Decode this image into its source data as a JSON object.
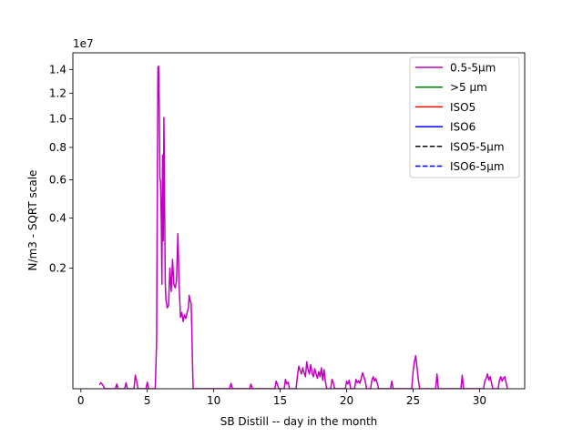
{
  "chart_data": {
    "type": "line",
    "xlabel": "SB Distill -- day in the month",
    "ylabel": "N/m3 - SQRT scale",
    "y_scale": "sqrt",
    "y_offset_label": "1e7",
    "xlim": [
      -0.6,
      33.4
    ],
    "ylim": [
      0,
      15500000
    ],
    "x_ticks": [
      0,
      5,
      10,
      15,
      20,
      25,
      30
    ],
    "x_tick_labels": [
      "0",
      "5",
      "10",
      "15",
      "20",
      "25",
      "30"
    ],
    "y_ticks": [
      2000000,
      4000000,
      6000000,
      8000000,
      10000000,
      12000000,
      14000000
    ],
    "y_tick_labels": [
      "0.2",
      "0.4",
      "0.6",
      "0.8",
      "1.0",
      "1.2",
      "1.4"
    ],
    "legend": {
      "location": "top-right",
      "entries": [
        {
          "label": "0.5-5µm",
          "color": "#bf00bf",
          "dash": "solid"
        },
        {
          "label": ">5 µm",
          "color": "#008000",
          "dash": "solid"
        },
        {
          "label": "ISO5",
          "color": "#ff0000",
          "dash": "solid"
        },
        {
          "label": "ISO6",
          "color": "#0000ff",
          "dash": "solid"
        },
        {
          "label": "ISO5-5µm",
          "color": "#000000",
          "dash": "dashed"
        },
        {
          "label": "ISO6-5µm",
          "color": "#0000ff",
          "dash": "dashed"
        }
      ]
    },
    "series": [
      {
        "name": "0.5-5µm",
        "color": "#bf00bf",
        "points": [
          [
            1.4,
            2000
          ],
          [
            1.5,
            5000
          ],
          [
            1.6,
            3000
          ],
          [
            1.7,
            1000
          ],
          [
            1.8,
            0
          ],
          [
            2.6,
            0
          ],
          [
            2.7,
            3000
          ],
          [
            2.8,
            0
          ],
          [
            3.3,
            0
          ],
          [
            3.4,
            5000
          ],
          [
            3.5,
            0
          ],
          [
            4.0,
            0
          ],
          [
            4.1,
            25000
          ],
          [
            4.2,
            8000
          ],
          [
            4.3,
            0
          ],
          [
            4.9,
            0
          ],
          [
            5.0,
            6000
          ],
          [
            5.1,
            0
          ],
          [
            5.6,
            0
          ],
          [
            5.7,
            300000
          ],
          [
            5.8,
            14200000
          ],
          [
            5.85,
            14300000
          ],
          [
            5.9,
            11000000
          ],
          [
            5.95,
            6100000
          ],
          [
            6.0,
            5900000
          ],
          [
            6.05,
            4000000
          ],
          [
            6.1,
            1500000
          ],
          [
            6.15,
            7500000
          ],
          [
            6.2,
            3000000
          ],
          [
            6.25,
            10100000
          ],
          [
            6.3,
            5000000
          ],
          [
            6.35,
            1600000
          ],
          [
            6.4,
            1100000
          ],
          [
            6.5,
            900000
          ],
          [
            6.6,
            950000
          ],
          [
            6.7,
            2000000
          ],
          [
            6.8,
            1300000
          ],
          [
            6.9,
            2300000
          ],
          [
            7.0,
            1500000
          ],
          [
            7.1,
            1400000
          ],
          [
            7.2,
            1600000
          ],
          [
            7.3,
            3300000
          ],
          [
            7.4,
            1400000
          ],
          [
            7.5,
            700000
          ],
          [
            7.6,
            800000
          ],
          [
            7.7,
            620000
          ],
          [
            7.8,
            750000
          ],
          [
            7.9,
            680000
          ],
          [
            8.0,
            800000
          ],
          [
            8.1,
            900000
          ],
          [
            8.15,
            1200000
          ],
          [
            8.2,
            1100000
          ],
          [
            8.3,
            1000000
          ],
          [
            8.35,
            500000
          ],
          [
            8.4,
            100000
          ],
          [
            8.45,
            0
          ],
          [
            11.2,
            0
          ],
          [
            11.3,
            4000
          ],
          [
            11.4,
            0
          ],
          [
            12.7,
            0
          ],
          [
            12.8,
            3000
          ],
          [
            12.9,
            0
          ],
          [
            14.6,
            0
          ],
          [
            14.7,
            8000
          ],
          [
            14.8,
            2000
          ],
          [
            14.9,
            0
          ],
          [
            15.3,
            0
          ],
          [
            15.4,
            12000
          ],
          [
            15.5,
            3000
          ],
          [
            15.6,
            6000
          ],
          [
            15.7,
            0
          ],
          [
            16.2,
            0
          ],
          [
            16.3,
            25000
          ],
          [
            16.4,
            70000
          ],
          [
            16.5,
            45000
          ],
          [
            16.6,
            30000
          ],
          [
            16.7,
            60000
          ],
          [
            16.8,
            35000
          ],
          [
            16.9,
            20000
          ],
          [
            17.0,
            100000
          ],
          [
            17.1,
            50000
          ],
          [
            17.2,
            30000
          ],
          [
            17.3,
            80000
          ],
          [
            17.4,
            35000
          ],
          [
            17.5,
            20000
          ],
          [
            17.6,
            55000
          ],
          [
            17.7,
            30000
          ],
          [
            17.8,
            15000
          ],
          [
            17.9,
            40000
          ],
          [
            18.0,
            20000
          ],
          [
            18.1,
            60000
          ],
          [
            18.2,
            10000
          ],
          [
            18.3,
            50000
          ],
          [
            18.4,
            8000
          ],
          [
            18.5,
            0
          ],
          [
            18.8,
            0
          ],
          [
            18.9,
            12000
          ],
          [
            19.0,
            5000
          ],
          [
            19.1,
            0
          ],
          [
            19.9,
            0
          ],
          [
            20.0,
            8000
          ],
          [
            20.1,
            3000
          ],
          [
            20.2,
            10000
          ],
          [
            20.3,
            0
          ],
          [
            20.6,
            0
          ],
          [
            20.7,
            12000
          ],
          [
            20.8,
            5000
          ],
          [
            20.9,
            9000
          ],
          [
            21.0,
            4000
          ],
          [
            21.1,
            15000
          ],
          [
            21.2,
            35000
          ],
          [
            21.3,
            20000
          ],
          [
            21.4,
            8000
          ],
          [
            21.5,
            0
          ],
          [
            21.8,
            0
          ],
          [
            21.9,
            10000
          ],
          [
            22.0,
            20000
          ],
          [
            22.1,
            8000
          ],
          [
            22.2,
            14000
          ],
          [
            22.3,
            5000
          ],
          [
            22.4,
            0
          ],
          [
            23.3,
            0
          ],
          [
            23.4,
            8000
          ],
          [
            23.5,
            0
          ],
          [
            24.9,
            0
          ],
          [
            25.0,
            40000
          ],
          [
            25.1,
            100000
          ],
          [
            25.2,
            150000
          ],
          [
            25.3,
            60000
          ],
          [
            25.4,
            10000
          ],
          [
            25.5,
            0
          ],
          [
            26.7,
            0
          ],
          [
            26.8,
            30000
          ],
          [
            26.9,
            0
          ],
          [
            28.6,
            0
          ],
          [
            28.7,
            25000
          ],
          [
            28.8,
            0
          ],
          [
            30.3,
            0
          ],
          [
            30.4,
            8000
          ],
          [
            30.5,
            15000
          ],
          [
            30.6,
            30000
          ],
          [
            30.7,
            10000
          ],
          [
            30.8,
            20000
          ],
          [
            30.9,
            5000
          ],
          [
            31.0,
            0
          ],
          [
            31.4,
            0
          ],
          [
            31.5,
            10000
          ],
          [
            31.6,
            20000
          ],
          [
            31.7,
            8000
          ],
          [
            31.8,
            15000
          ],
          [
            31.9,
            20000
          ],
          [
            32.0,
            5000
          ],
          [
            32.1,
            0
          ]
        ]
      }
    ]
  }
}
